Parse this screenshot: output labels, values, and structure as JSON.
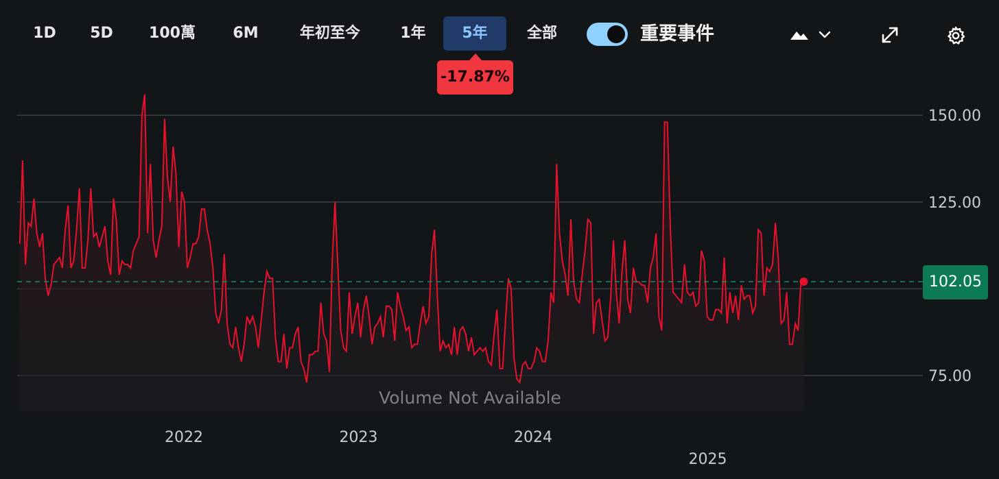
{
  "toolbar": {
    "ranges": [
      {
        "label": "1D"
      },
      {
        "label": "5D"
      },
      {
        "label": "100萬"
      },
      {
        "label": "6M"
      },
      {
        "label": "年初至今"
      },
      {
        "label": "1年"
      },
      {
        "label": "5年",
        "active": true
      },
      {
        "label": "全部"
      }
    ],
    "events_toggle": {
      "label": "重要事件",
      "on": true
    },
    "icons": [
      "mountain-chart-icon",
      "chevron-down-icon",
      "expand-icon",
      "gear-icon"
    ]
  },
  "change_badge": {
    "text": "-17.87%",
    "color": "#f0363e"
  },
  "current_price": {
    "text": "102.05",
    "value": 102.05,
    "color": "#0b7a55"
  },
  "volume_note": "Volume Not Available",
  "chart_data": {
    "type": "line",
    "series": [
      {
        "color": "#e8112d",
        "x_start": 2021.06,
        "x_end": 2025.55,
        "values": [
          113,
          137,
          107,
          119,
          118,
          126,
          116,
          112,
          116,
          103,
          98,
          101,
          107,
          108,
          109,
          106,
          117,
          124,
          106,
          108,
          117,
          129,
          106,
          106,
          114,
          129,
          115,
          116,
          112,
          115,
          118,
          108,
          104,
          126,
          120,
          104,
          108,
          107,
          107,
          106,
          111,
          113,
          115,
          150,
          156,
          116,
          136,
          114,
          109,
          114,
          118,
          149,
          132,
          125,
          141,
          133,
          112,
          128,
          125,
          106,
          109,
          113,
          113,
          115,
          123,
          123,
          117,
          113,
          106,
          93,
          90,
          94,
          110,
          90,
          84,
          83,
          89,
          83,
          79,
          84,
          92,
          90,
          92,
          89,
          83,
          91,
          99,
          105,
          103,
          103,
          86,
          79,
          79,
          87,
          77,
          83,
          83,
          87,
          89,
          79,
          77,
          73,
          81,
          81,
          82,
          82,
          96,
          87,
          85,
          76,
          108,
          125,
          106,
          88,
          83,
          82,
          99,
          87,
          92,
          96,
          86,
          94,
          98,
          92,
          84,
          89,
          90,
          92,
          86,
          95,
          95,
          94,
          85,
          99,
          95,
          92,
          88,
          89,
          83,
          84,
          84,
          90,
          95,
          90,
          92,
          110,
          117,
          98,
          82,
          85,
          83,
          84,
          81,
          89,
          81,
          88,
          89,
          87,
          82,
          86,
          81,
          82,
          83,
          82,
          83,
          79,
          78,
          87,
          94,
          77,
          77,
          91,
          103,
          100,
          80,
          74,
          73,
          78,
          79,
          77,
          77,
          79,
          83,
          82,
          79,
          79,
          85,
          99,
          96,
          136,
          116,
          108,
          104,
          98,
          120,
          102,
          97,
          96,
          104,
          111,
          120,
          119,
          87,
          96,
          97,
          91,
          85,
          86,
          97,
          114,
          99,
          90,
          105,
          114,
          97,
          93,
          106,
          102,
          102,
          101,
          101,
          96,
          106,
          109,
          116,
          92,
          88,
          148,
          148,
          118,
          99,
          98,
          97,
          96,
          107,
          99,
          98,
          99,
          95,
          96,
          111,
          108,
          92,
          91,
          91,
          94,
          94,
          93,
          109,
          90,
          99,
          93,
          98,
          91,
          101,
          97,
          98,
          98,
          93,
          95,
          117,
          116,
          98,
          106,
          105,
          107,
          119,
          109,
          90,
          91,
          99,
          84,
          84,
          90,
          88,
          102,
          102
        ],
        "last_value": 102.05
      }
    ],
    "reference_line": 102.05,
    "ylim": [
      70,
      160
    ],
    "yticks": [
      75,
      125,
      150
    ],
    "ytick_labels": [
      "75.00",
      "125.00",
      "150.00"
    ],
    "xticks": [
      {
        "value": 2022.0,
        "label": "2022"
      },
      {
        "value": 2023.0,
        "label": "2023"
      },
      {
        "value": 2024.0,
        "label": "2024"
      },
      {
        "value": 2025.0,
        "label": "2025"
      }
    ],
    "grid": true
  }
}
